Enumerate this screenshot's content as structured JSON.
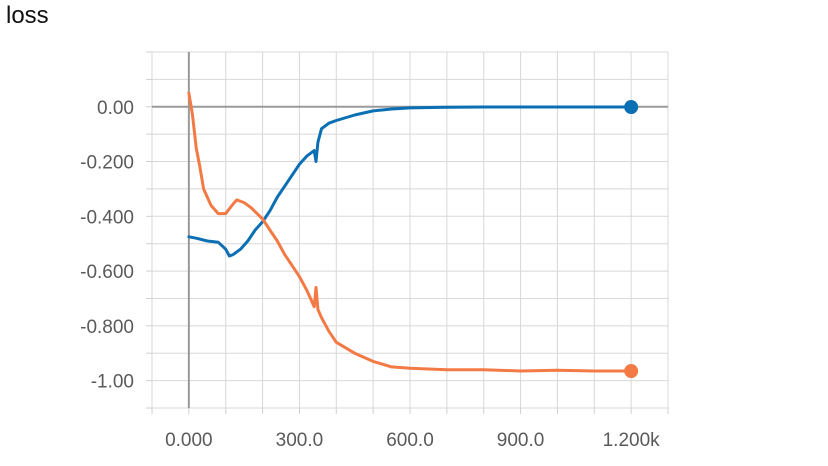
{
  "chart_data": {
    "type": "line",
    "title": "loss",
    "xlabel": "",
    "ylabel": "",
    "xlim": [
      -100,
      1300
    ],
    "ylim": [
      -1.1,
      0.2
    ],
    "grid": true,
    "x_ticks": [
      {
        "value": 0,
        "label": "0.000"
      },
      {
        "value": 300,
        "label": "300.0"
      },
      {
        "value": 600,
        "label": "600.0"
      },
      {
        "value": 900,
        "label": "900.0"
      },
      {
        "value": 1200,
        "label": "1.200k"
      }
    ],
    "y_ticks": [
      {
        "value": 0.0,
        "label": "0.00"
      },
      {
        "value": -0.2,
        "label": "-0.200"
      },
      {
        "value": -0.4,
        "label": "-0.400"
      },
      {
        "value": -0.6,
        "label": "-0.600"
      },
      {
        "value": -0.8,
        "label": "-0.800"
      },
      {
        "value": -1.0,
        "label": "-1.00"
      }
    ],
    "series": [
      {
        "color": "#0b6fb4",
        "x": [
          0,
          20,
          50,
          80,
          100,
          110,
          120,
          140,
          160,
          180,
          200,
          220,
          240,
          260,
          280,
          300,
          320,
          340,
          345,
          350,
          360,
          380,
          400,
          450,
          500,
          550,
          600,
          700,
          800,
          900,
          1000,
          1100,
          1200
        ],
        "y": [
          -0.475,
          -0.48,
          -0.49,
          -0.495,
          -0.52,
          -0.545,
          -0.54,
          -0.52,
          -0.49,
          -0.45,
          -0.42,
          -0.38,
          -0.33,
          -0.29,
          -0.25,
          -0.21,
          -0.18,
          -0.16,
          -0.2,
          -0.13,
          -0.08,
          -0.06,
          -0.05,
          -0.03,
          -0.015,
          -0.008,
          -0.004,
          -0.002,
          -0.001,
          -0.001,
          -0.001,
          -0.001,
          -0.001
        ]
      },
      {
        "color": "#f47a45",
        "x": [
          0,
          10,
          20,
          30,
          40,
          60,
          80,
          100,
          120,
          130,
          150,
          170,
          200,
          220,
          240,
          260,
          280,
          300,
          320,
          340,
          345,
          350,
          360,
          380,
          400,
          450,
          500,
          550,
          600,
          700,
          800,
          900,
          1000,
          1100,
          1200
        ],
        "y": [
          0.05,
          -0.03,
          -0.15,
          -0.22,
          -0.3,
          -0.36,
          -0.39,
          -0.39,
          -0.355,
          -0.34,
          -0.35,
          -0.37,
          -0.41,
          -0.45,
          -0.49,
          -0.54,
          -0.58,
          -0.62,
          -0.67,
          -0.73,
          -0.66,
          -0.74,
          -0.77,
          -0.82,
          -0.86,
          -0.9,
          -0.93,
          -0.95,
          -0.955,
          -0.96,
          -0.96,
          -0.965,
          -0.962,
          -0.965,
          -0.965
        ]
      }
    ]
  }
}
